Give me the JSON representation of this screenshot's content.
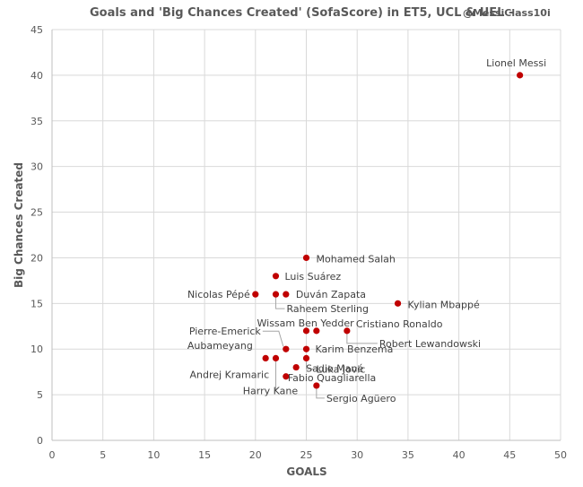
{
  "chart_data": {
    "type": "scatter",
    "title": "Goals and 'Big Chances  Created' (SofaScore)  in ET5, UCL & UEL -",
    "title_handle": "@MessiClass10i",
    "xlabel": "GOALS",
    "ylabel": "Big Chances Created",
    "xlim": [
      0,
      50
    ],
    "ylim": [
      0,
      45
    ],
    "xticks": [
      "0",
      "5",
      "10",
      "15",
      "20",
      "25",
      "30",
      "35",
      "40",
      "45",
      "50"
    ],
    "yticks": [
      "0",
      "5",
      "10",
      "15",
      "20",
      "25",
      "30",
      "35",
      "40",
      "45"
    ],
    "grid": true,
    "marker_color": "#c00000",
    "points": [
      {
        "label": "Lionel Messi",
        "x": 46,
        "y": 40
      },
      {
        "label": "Mohamed Salah",
        "x": 25,
        "y": 20
      },
      {
        "label": "Luis Suárez",
        "x": 22,
        "y": 18
      },
      {
        "label": "Nicolas Pépé",
        "x": 20,
        "y": 16
      },
      {
        "label": "Duván Zapata",
        "x": 23,
        "y": 16
      },
      {
        "label": "Raheem Sterling",
        "x": 22,
        "y": 16
      },
      {
        "label": "Kylian Mbappé",
        "x": 34,
        "y": 15
      },
      {
        "label": "Wissam Ben Yedder",
        "x": 25,
        "y": 12
      },
      {
        "label": "Cristiano Ronaldo",
        "x": 26,
        "y": 12
      },
      {
        "label": "Robert Lewandowski",
        "x": 29,
        "y": 12
      },
      {
        "label": "Pierre-Emerick Aubameyang",
        "x": 23,
        "y": 10
      },
      {
        "label": "Karim Benzema",
        "x": 25,
        "y": 10
      },
      {
        "label": "Andrej Kramaric",
        "x": 21,
        "y": 9
      },
      {
        "label": "Luka Jovic",
        "x": 25,
        "y": 9
      },
      {
        "label": "Harry Kane",
        "x": 22,
        "y": 9
      },
      {
        "label": "Sadio Mané",
        "x": 24,
        "y": 8
      },
      {
        "label": "Fabio Quagliarella",
        "x": 23,
        "y": 7
      },
      {
        "label": "Sergio Agüero",
        "x": 26,
        "y": 6
      }
    ]
  }
}
